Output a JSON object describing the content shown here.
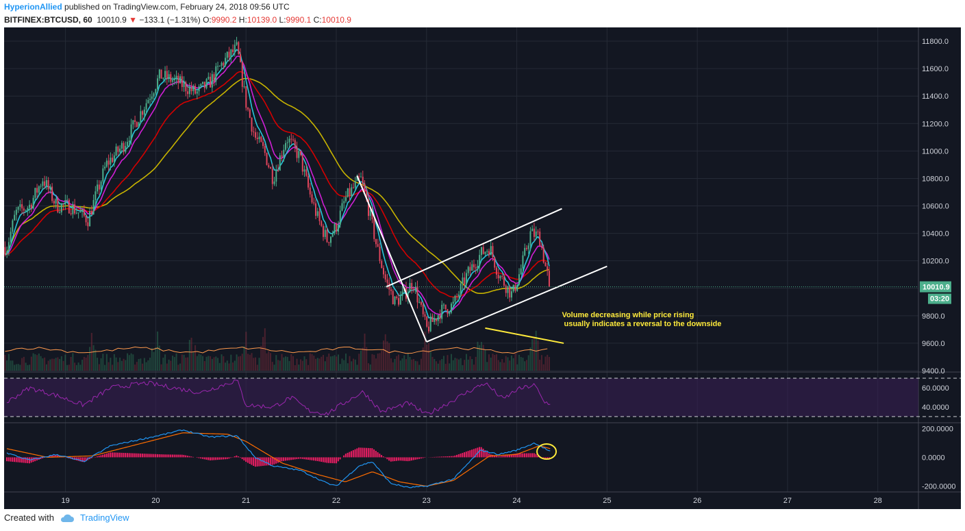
{
  "header": {
    "author": "HyperionAllied",
    "published": "published on TradingView.com, February 24, 2018 09:56 UTC",
    "symbol": "BITFINEX:BTCUSD, 60",
    "last": "10010.9",
    "change_arrow": "▼",
    "change": "−133.1 (−1.31%)",
    "o_label": "O:",
    "o": "9990.2",
    "h_label": "H:",
    "h": "10139.0",
    "l_label": "L:",
    "l": "9990.1",
    "c_label": "C:",
    "c": "10010.9"
  },
  "footer": {
    "created_with": "Created with",
    "brand": "TradingView",
    "brand_icon": "cloud-logo-icon"
  },
  "colors": {
    "bg": "#131722",
    "up": "#4caf8c",
    "down": "#e0455c",
    "ema_fast": "#26c6da",
    "ema_mid": "#d01fd6",
    "ema_slow": "#d50000",
    "sma": "#c8b400",
    "rsi": "#9c27b0",
    "macd": "#2196f3",
    "signal": "#ff6d00",
    "annotation": "#ffeb3b"
  },
  "chart_data": {
    "type": "candlestick",
    "x_axis_labels": [
      "19",
      "20",
      "21",
      "22",
      "23",
      "24",
      "25",
      "26",
      "27",
      "28"
    ],
    "price_axis": {
      "ylim": [
        9400,
        11900
      ],
      "ticks": [
        "11800.0",
        "11600.0",
        "11400.0",
        "11200.0",
        "11000.0",
        "10800.0",
        "10600.0",
        "10400.0",
        "10200.0",
        "10000.0",
        "9800.0",
        "9600.0",
        "9400.0"
      ],
      "hidden_ticks": [
        "10000.0"
      ]
    },
    "last_price_label": "10010.9",
    "countdown_label": "03:20",
    "price_keypoints": [
      {
        "x": 18.35,
        "y": 10300
      },
      {
        "x": 18.45,
        "y": 10550
      },
      {
        "x": 18.6,
        "y": 10600
      },
      {
        "x": 18.75,
        "y": 10800
      },
      {
        "x": 18.9,
        "y": 10600
      },
      {
        "x": 19.05,
        "y": 10600
      },
      {
        "x": 19.25,
        "y": 10500
      },
      {
        "x": 19.45,
        "y": 10900
      },
      {
        "x": 19.65,
        "y": 11050
      },
      {
        "x": 19.85,
        "y": 11300
      },
      {
        "x": 20.05,
        "y": 11550
      },
      {
        "x": 20.25,
        "y": 11500
      },
      {
        "x": 20.45,
        "y": 11420
      },
      {
        "x": 20.6,
        "y": 11500
      },
      {
        "x": 20.75,
        "y": 11650
      },
      {
        "x": 20.9,
        "y": 11750
      },
      {
        "x": 21.0,
        "y": 11350
      },
      {
        "x": 21.1,
        "y": 11100
      },
      {
        "x": 21.2,
        "y": 11000
      },
      {
        "x": 21.3,
        "y": 10800
      },
      {
        "x": 21.45,
        "y": 11100
      },
      {
        "x": 21.6,
        "y": 10950
      },
      {
        "x": 21.7,
        "y": 10700
      },
      {
        "x": 21.8,
        "y": 10500
      },
      {
        "x": 21.9,
        "y": 10350
      },
      {
        "x": 22.0,
        "y": 10450
      },
      {
        "x": 22.1,
        "y": 10650
      },
      {
        "x": 22.27,
        "y": 10800
      },
      {
        "x": 22.35,
        "y": 10600
      },
      {
        "x": 22.45,
        "y": 10300
      },
      {
        "x": 22.55,
        "y": 10050
      },
      {
        "x": 22.65,
        "y": 9900
      },
      {
        "x": 22.75,
        "y": 9950
      },
      {
        "x": 22.85,
        "y": 10050
      },
      {
        "x": 23.0,
        "y": 9700
      },
      {
        "x": 23.15,
        "y": 9830
      },
      {
        "x": 23.3,
        "y": 9880
      },
      {
        "x": 23.45,
        "y": 10100
      },
      {
        "x": 23.6,
        "y": 10250
      },
      {
        "x": 23.7,
        "y": 10300
      },
      {
        "x": 23.8,
        "y": 10100
      },
      {
        "x": 23.95,
        "y": 9950
      },
      {
        "x": 24.05,
        "y": 10150
      },
      {
        "x": 24.15,
        "y": 10400
      },
      {
        "x": 24.25,
        "y": 10380
      },
      {
        "x": 24.32,
        "y": 10150
      },
      {
        "x": 24.37,
        "y": 10010
      }
    ],
    "volume_peak_x": [
      19.3,
      20.0,
      20.4,
      21.0,
      21.2,
      22.3,
      22.55,
      23.0,
      23.6,
      24.2
    ],
    "rsi": {
      "ticks": [
        "60.0000",
        "40.0000"
      ],
      "ylim": [
        25,
        75
      ],
      "bands": [
        70,
        30
      ],
      "keypoints": [
        {
          "x": 18.35,
          "y": 45
        },
        {
          "x": 18.6,
          "y": 60
        },
        {
          "x": 18.9,
          "y": 52
        },
        {
          "x": 19.2,
          "y": 42
        },
        {
          "x": 19.5,
          "y": 60
        },
        {
          "x": 19.9,
          "y": 65
        },
        {
          "x": 20.2,
          "y": 60
        },
        {
          "x": 20.5,
          "y": 55
        },
        {
          "x": 20.9,
          "y": 68
        },
        {
          "x": 21.0,
          "y": 42
        },
        {
          "x": 21.3,
          "y": 40
        },
        {
          "x": 21.5,
          "y": 50
        },
        {
          "x": 21.7,
          "y": 36
        },
        {
          "x": 21.9,
          "y": 33
        },
        {
          "x": 22.1,
          "y": 45
        },
        {
          "x": 22.3,
          "y": 56
        },
        {
          "x": 22.5,
          "y": 35
        },
        {
          "x": 22.8,
          "y": 44
        },
        {
          "x": 23.0,
          "y": 32
        },
        {
          "x": 23.2,
          "y": 42
        },
        {
          "x": 23.5,
          "y": 58
        },
        {
          "x": 23.65,
          "y": 65
        },
        {
          "x": 23.85,
          "y": 48
        },
        {
          "x": 24.0,
          "y": 58
        },
        {
          "x": 24.2,
          "y": 63
        },
        {
          "x": 24.3,
          "y": 45
        },
        {
          "x": 24.37,
          "y": 44
        }
      ]
    },
    "macd": {
      "ticks": [
        "200.0000",
        "0.0000",
        "-200.0000"
      ],
      "ylim": [
        -240,
        230
      ],
      "macd_keypoints": [
        {
          "x": 18.35,
          "y": 30
        },
        {
          "x": 18.6,
          "y": -20
        },
        {
          "x": 18.9,
          "y": 20
        },
        {
          "x": 19.2,
          "y": -30
        },
        {
          "x": 19.5,
          "y": 80
        },
        {
          "x": 19.8,
          "y": 120
        },
        {
          "x": 20.1,
          "y": 160
        },
        {
          "x": 20.3,
          "y": 190
        },
        {
          "x": 20.6,
          "y": 140
        },
        {
          "x": 20.9,
          "y": 150
        },
        {
          "x": 21.1,
          "y": 0
        },
        {
          "x": 21.3,
          "y": -60
        },
        {
          "x": 21.6,
          "y": -90
        },
        {
          "x": 21.9,
          "y": -180
        },
        {
          "x": 22.0,
          "y": -200
        },
        {
          "x": 22.25,
          "y": -60
        },
        {
          "x": 22.4,
          "y": -30
        },
        {
          "x": 22.6,
          "y": -180
        },
        {
          "x": 22.8,
          "y": -210
        },
        {
          "x": 23.0,
          "y": -200
        },
        {
          "x": 23.3,
          "y": -150
        },
        {
          "x": 23.6,
          "y": 50
        },
        {
          "x": 23.8,
          "y": 20
        },
        {
          "x": 24.0,
          "y": 50
        },
        {
          "x": 24.2,
          "y": 100
        },
        {
          "x": 24.37,
          "y": 40
        }
      ],
      "signal_keypoints": [
        {
          "x": 18.35,
          "y": 60
        },
        {
          "x": 18.8,
          "y": 0
        },
        {
          "x": 19.3,
          "y": 10
        },
        {
          "x": 19.8,
          "y": 90
        },
        {
          "x": 20.3,
          "y": 170
        },
        {
          "x": 20.8,
          "y": 160
        },
        {
          "x": 21.0,
          "y": 110
        },
        {
          "x": 21.4,
          "y": -40
        },
        {
          "x": 21.8,
          "y": -120
        },
        {
          "x": 22.1,
          "y": -170
        },
        {
          "x": 22.4,
          "y": -100
        },
        {
          "x": 22.7,
          "y": -170
        },
        {
          "x": 23.0,
          "y": -200
        },
        {
          "x": 23.3,
          "y": -160
        },
        {
          "x": 23.7,
          "y": 10
        },
        {
          "x": 24.0,
          "y": 20
        },
        {
          "x": 24.25,
          "y": 80
        },
        {
          "x": 24.37,
          "y": 60
        }
      ]
    },
    "drawings": {
      "annotation": [
        "Volume decreasing while price rising",
        " usually indicates a reversal to the downside"
      ]
    }
  }
}
